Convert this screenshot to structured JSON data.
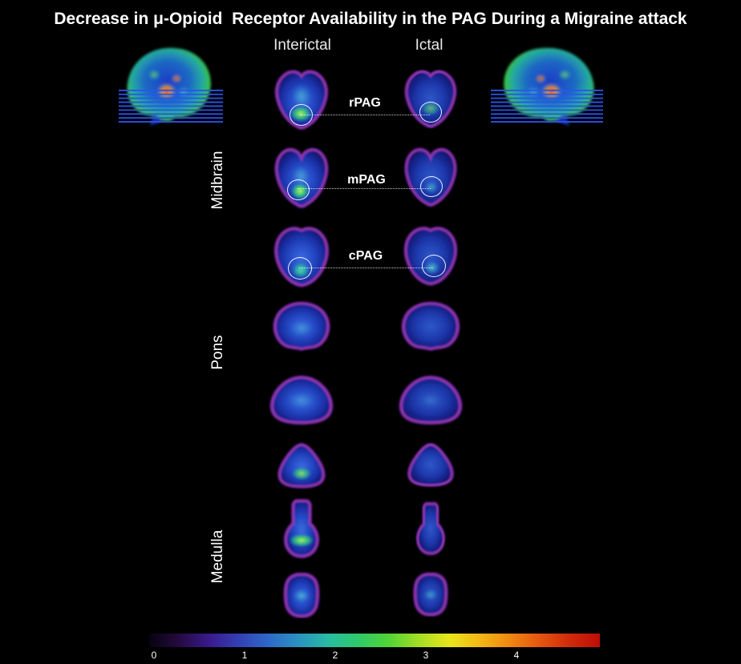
{
  "title": "Decrease in μ-Opioid  Receptor Availability in the PAG During a Migraine attack",
  "column_headers": {
    "interictal": "Interictal",
    "ictal": "Ictal"
  },
  "region_labels": {
    "midbrain": "Midbrain",
    "pons": "Pons",
    "medulla": "Medulla"
  },
  "pag_annotations": {
    "rostral": "rPAG",
    "medial": "mPAG",
    "caudal": "cPAG"
  },
  "colorbar": {
    "tick_labels": [
      "0",
      "1",
      "2",
      "3",
      "4"
    ],
    "gradient_colors": [
      "#070310",
      "#250a40",
      "#381a8c",
      "#3440b6",
      "#2e6ac8",
      "#2a94c0",
      "#28bca0",
      "#30c968",
      "#52d434",
      "#a6de24",
      "#e8e51c",
      "#f4b814",
      "#f08812",
      "#e45510",
      "#d02a0b",
      "#bf0d06"
    ]
  },
  "palette": {
    "background": "#000000",
    "slice_body_blue": "#2448c4",
    "slice_rim_purple": "#8b36b0",
    "hotspot_green": "#52d96a",
    "hotspot_cyan": "#49d6c2",
    "hotspot_red": "#ff2e08",
    "slice_indicator_lines_blue": "#2a55f0",
    "annotation_white": "#ffffff"
  }
}
